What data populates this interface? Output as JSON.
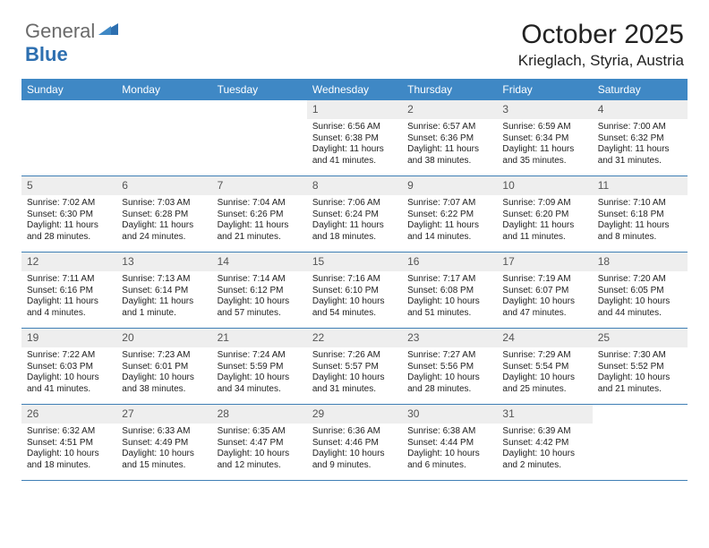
{
  "brand": {
    "general": "General",
    "blue": "Blue"
  },
  "title": "October 2025",
  "location": "Krieglach, Styria, Austria",
  "colors": {
    "header_bg": "#3f88c5",
    "header_text": "#ffffff",
    "daynum_bg": "#eeeeee",
    "rule": "#3f7fb5",
    "logo_gray": "#6a6a6a",
    "logo_blue": "#2d6fb0",
    "body_text": "#222222"
  },
  "weekdays": [
    "Sunday",
    "Monday",
    "Tuesday",
    "Wednesday",
    "Thursday",
    "Friday",
    "Saturday"
  ],
  "weeks": [
    [
      null,
      null,
      null,
      {
        "n": "1",
        "sr": "Sunrise: 6:56 AM",
        "ss": "Sunset: 6:38 PM",
        "d1": "Daylight: 11 hours",
        "d2": "and 41 minutes."
      },
      {
        "n": "2",
        "sr": "Sunrise: 6:57 AM",
        "ss": "Sunset: 6:36 PM",
        "d1": "Daylight: 11 hours",
        "d2": "and 38 minutes."
      },
      {
        "n": "3",
        "sr": "Sunrise: 6:59 AM",
        "ss": "Sunset: 6:34 PM",
        "d1": "Daylight: 11 hours",
        "d2": "and 35 minutes."
      },
      {
        "n": "4",
        "sr": "Sunrise: 7:00 AM",
        "ss": "Sunset: 6:32 PM",
        "d1": "Daylight: 11 hours",
        "d2": "and 31 minutes."
      }
    ],
    [
      {
        "n": "5",
        "sr": "Sunrise: 7:02 AM",
        "ss": "Sunset: 6:30 PM",
        "d1": "Daylight: 11 hours",
        "d2": "and 28 minutes."
      },
      {
        "n": "6",
        "sr": "Sunrise: 7:03 AM",
        "ss": "Sunset: 6:28 PM",
        "d1": "Daylight: 11 hours",
        "d2": "and 24 minutes."
      },
      {
        "n": "7",
        "sr": "Sunrise: 7:04 AM",
        "ss": "Sunset: 6:26 PM",
        "d1": "Daylight: 11 hours",
        "d2": "and 21 minutes."
      },
      {
        "n": "8",
        "sr": "Sunrise: 7:06 AM",
        "ss": "Sunset: 6:24 PM",
        "d1": "Daylight: 11 hours",
        "d2": "and 18 minutes."
      },
      {
        "n": "9",
        "sr": "Sunrise: 7:07 AM",
        "ss": "Sunset: 6:22 PM",
        "d1": "Daylight: 11 hours",
        "d2": "and 14 minutes."
      },
      {
        "n": "10",
        "sr": "Sunrise: 7:09 AM",
        "ss": "Sunset: 6:20 PM",
        "d1": "Daylight: 11 hours",
        "d2": "and 11 minutes."
      },
      {
        "n": "11",
        "sr": "Sunrise: 7:10 AM",
        "ss": "Sunset: 6:18 PM",
        "d1": "Daylight: 11 hours",
        "d2": "and 8 minutes."
      }
    ],
    [
      {
        "n": "12",
        "sr": "Sunrise: 7:11 AM",
        "ss": "Sunset: 6:16 PM",
        "d1": "Daylight: 11 hours",
        "d2": "and 4 minutes."
      },
      {
        "n": "13",
        "sr": "Sunrise: 7:13 AM",
        "ss": "Sunset: 6:14 PM",
        "d1": "Daylight: 11 hours",
        "d2": "and 1 minute."
      },
      {
        "n": "14",
        "sr": "Sunrise: 7:14 AM",
        "ss": "Sunset: 6:12 PM",
        "d1": "Daylight: 10 hours",
        "d2": "and 57 minutes."
      },
      {
        "n": "15",
        "sr": "Sunrise: 7:16 AM",
        "ss": "Sunset: 6:10 PM",
        "d1": "Daylight: 10 hours",
        "d2": "and 54 minutes."
      },
      {
        "n": "16",
        "sr": "Sunrise: 7:17 AM",
        "ss": "Sunset: 6:08 PM",
        "d1": "Daylight: 10 hours",
        "d2": "and 51 minutes."
      },
      {
        "n": "17",
        "sr": "Sunrise: 7:19 AM",
        "ss": "Sunset: 6:07 PM",
        "d1": "Daylight: 10 hours",
        "d2": "and 47 minutes."
      },
      {
        "n": "18",
        "sr": "Sunrise: 7:20 AM",
        "ss": "Sunset: 6:05 PM",
        "d1": "Daylight: 10 hours",
        "d2": "and 44 minutes."
      }
    ],
    [
      {
        "n": "19",
        "sr": "Sunrise: 7:22 AM",
        "ss": "Sunset: 6:03 PM",
        "d1": "Daylight: 10 hours",
        "d2": "and 41 minutes."
      },
      {
        "n": "20",
        "sr": "Sunrise: 7:23 AM",
        "ss": "Sunset: 6:01 PM",
        "d1": "Daylight: 10 hours",
        "d2": "and 38 minutes."
      },
      {
        "n": "21",
        "sr": "Sunrise: 7:24 AM",
        "ss": "Sunset: 5:59 PM",
        "d1": "Daylight: 10 hours",
        "d2": "and 34 minutes."
      },
      {
        "n": "22",
        "sr": "Sunrise: 7:26 AM",
        "ss": "Sunset: 5:57 PM",
        "d1": "Daylight: 10 hours",
        "d2": "and 31 minutes."
      },
      {
        "n": "23",
        "sr": "Sunrise: 7:27 AM",
        "ss": "Sunset: 5:56 PM",
        "d1": "Daylight: 10 hours",
        "d2": "and 28 minutes."
      },
      {
        "n": "24",
        "sr": "Sunrise: 7:29 AM",
        "ss": "Sunset: 5:54 PM",
        "d1": "Daylight: 10 hours",
        "d2": "and 25 minutes."
      },
      {
        "n": "25",
        "sr": "Sunrise: 7:30 AM",
        "ss": "Sunset: 5:52 PM",
        "d1": "Daylight: 10 hours",
        "d2": "and 21 minutes."
      }
    ],
    [
      {
        "n": "26",
        "sr": "Sunrise: 6:32 AM",
        "ss": "Sunset: 4:51 PM",
        "d1": "Daylight: 10 hours",
        "d2": "and 18 minutes."
      },
      {
        "n": "27",
        "sr": "Sunrise: 6:33 AM",
        "ss": "Sunset: 4:49 PM",
        "d1": "Daylight: 10 hours",
        "d2": "and 15 minutes."
      },
      {
        "n": "28",
        "sr": "Sunrise: 6:35 AM",
        "ss": "Sunset: 4:47 PM",
        "d1": "Daylight: 10 hours",
        "d2": "and 12 minutes."
      },
      {
        "n": "29",
        "sr": "Sunrise: 6:36 AM",
        "ss": "Sunset: 4:46 PM",
        "d1": "Daylight: 10 hours",
        "d2": "and 9 minutes."
      },
      {
        "n": "30",
        "sr": "Sunrise: 6:38 AM",
        "ss": "Sunset: 4:44 PM",
        "d1": "Daylight: 10 hours",
        "d2": "and 6 minutes."
      },
      {
        "n": "31",
        "sr": "Sunrise: 6:39 AM",
        "ss": "Sunset: 4:42 PM",
        "d1": "Daylight: 10 hours",
        "d2": "and 2 minutes."
      },
      null
    ]
  ]
}
